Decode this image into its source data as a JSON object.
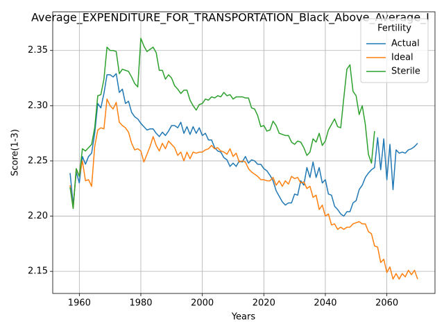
{
  "chart_data": {
    "type": "line",
    "title": "Average_EXPENDITURE_FOR_TRANSPORTATION_Black_Above_Average_I",
    "xlabel": "Years",
    "ylabel": "Score(1-3)",
    "legend_title": "Fertility",
    "legend": "upper right",
    "grid": true,
    "x": [
      1957,
      1958,
      1959,
      1960,
      1961,
      1962,
      1963,
      1964,
      1965,
      1966,
      1967,
      1968,
      1969,
      1970,
      1971,
      1972,
      1973,
      1974,
      1975,
      1976,
      1977,
      1978,
      1979,
      1980,
      1981,
      1982,
      1983,
      1984,
      1985,
      1986,
      1987,
      1988,
      1989,
      1990,
      1991,
      1992,
      1993,
      1994,
      1995,
      1996,
      1997,
      1998,
      1999,
      2000,
      2001,
      2002,
      2003,
      2004,
      2005,
      2006,
      2007,
      2008,
      2009,
      2010,
      2011,
      2012,
      2013,
      2014,
      2015,
      2016,
      2017,
      2018,
      2019,
      2020,
      2021,
      2022,
      2023,
      2024,
      2025,
      2026,
      2027,
      2028,
      2029,
      2030,
      2031,
      2032,
      2033,
      2034,
      2035,
      2036,
      2037,
      2038,
      2039,
      2040,
      2041,
      2042,
      2043,
      2044,
      2045,
      2046,
      2047,
      2048,
      2049,
      2050,
      2051,
      2052,
      2053,
      2054,
      2055,
      2056,
      2057,
      2058,
      2059,
      2060,
      2061,
      2062,
      2063,
      2064,
      2065,
      2066,
      2067,
      2068,
      2069,
      2070
    ],
    "series": [
      {
        "name": "Actual",
        "color": "#1f77b4",
        "values": [
          2.239,
          2.21,
          2.24,
          2.23,
          2.254,
          2.247,
          2.254,
          2.257,
          2.275,
          2.302,
          2.298,
          2.311,
          2.328,
          2.328,
          2.326,
          2.329,
          2.312,
          2.315,
          2.302,
          2.304,
          2.294,
          2.29,
          2.288,
          2.284,
          2.281,
          2.278,
          2.279,
          2.279,
          2.275,
          2.272,
          2.276,
          2.273,
          2.277,
          2.282,
          2.282,
          2.28,
          2.285,
          2.275,
          2.281,
          2.274,
          2.281,
          2.275,
          2.28,
          2.273,
          2.275,
          2.269,
          2.269,
          2.262,
          2.259,
          2.258,
          2.253,
          2.251,
          2.245,
          2.248,
          2.245,
          2.25,
          2.249,
          2.254,
          2.248,
          2.251,
          2.25,
          2.247,
          2.247,
          2.243,
          2.241,
          2.237,
          2.232,
          2.223,
          2.218,
          2.213,
          2.21,
          2.212,
          2.212,
          2.22,
          2.219,
          2.232,
          2.228,
          2.244,
          2.235,
          2.249,
          2.235,
          2.244,
          2.23,
          2.233,
          2.22,
          2.219,
          2.209,
          2.206,
          2.202,
          2.2,
          2.204,
          2.204,
          2.212,
          2.214,
          2.224,
          2.228,
          2.235,
          2.239,
          2.242,
          2.244,
          2.271,
          2.242,
          2.27,
          2.233,
          2.265,
          2.224,
          2.26,
          2.257,
          2.258,
          2.257,
          2.26,
          2.261,
          2.263,
          2.266
        ]
      },
      {
        "name": "Ideal",
        "color": "#ff7f0e",
        "values": [
          2.228,
          2.207,
          2.243,
          2.236,
          2.25,
          2.232,
          2.233,
          2.227,
          2.263,
          2.278,
          2.28,
          2.279,
          2.306,
          2.3,
          2.297,
          2.303,
          2.285,
          2.282,
          2.28,
          2.276,
          2.266,
          2.26,
          2.261,
          2.259,
          2.249,
          2.256,
          2.263,
          2.272,
          2.264,
          2.259,
          2.266,
          2.261,
          2.268,
          2.265,
          2.262,
          2.255,
          2.258,
          2.25,
          2.258,
          2.252,
          2.258,
          2.257,
          2.258,
          2.258,
          2.26,
          2.261,
          2.264,
          2.261,
          2.262,
          2.259,
          2.258,
          2.256,
          2.261,
          2.254,
          2.257,
          2.249,
          2.25,
          2.249,
          2.243,
          2.24,
          2.238,
          2.236,
          2.233,
          2.233,
          2.232,
          2.232,
          2.235,
          2.228,
          2.232,
          2.227,
          2.232,
          2.229,
          2.236,
          2.234,
          2.235,
          2.23,
          2.231,
          2.225,
          2.227,
          2.217,
          2.219,
          2.206,
          2.21,
          2.2,
          2.202,
          2.192,
          2.193,
          2.188,
          2.19,
          2.188,
          2.19,
          2.19,
          2.193,
          2.194,
          2.195,
          2.193,
          2.193,
          2.186,
          2.184,
          2.173,
          2.172,
          2.158,
          2.161,
          2.149,
          2.154,
          2.143,
          2.148,
          2.143,
          2.148,
          2.145,
          2.151,
          2.147,
          2.151,
          2.143
        ]
      },
      {
        "name": "Sterile",
        "color": "#2ca02c",
        "values": [
          2.226,
          2.207,
          2.243,
          2.236,
          2.261,
          2.259,
          2.262,
          2.265,
          2.28,
          2.309,
          2.31,
          2.324,
          2.353,
          2.35,
          2.35,
          2.349,
          2.329,
          2.333,
          2.332,
          2.331,
          2.326,
          2.32,
          2.317,
          2.361,
          2.354,
          2.349,
          2.351,
          2.353,
          2.348,
          2.332,
          2.332,
          2.324,
          2.328,
          2.325,
          2.318,
          2.315,
          2.311,
          2.314,
          2.314,
          2.305,
          2.3,
          2.296,
          2.301,
          2.302,
          2.306,
          2.305,
          2.308,
          2.307,
          2.309,
          2.308,
          2.312,
          2.309,
          2.31,
          2.306,
          2.308,
          2.308,
          2.308,
          2.307,
          2.307,
          2.298,
          2.297,
          2.291,
          2.281,
          2.282,
          2.277,
          2.278,
          2.286,
          2.282,
          2.275,
          2.274,
          2.273,
          2.273,
          2.267,
          2.265,
          2.268,
          2.267,
          2.262,
          2.255,
          2.258,
          2.27,
          2.267,
          2.275,
          2.264,
          2.268,
          2.278,
          2.283,
          2.288,
          2.281,
          2.28,
          2.307,
          2.333,
          2.337,
          2.313,
          2.309,
          2.292,
          2.3,
          2.283,
          2.256,
          2.248,
          2.277,
          null,
          null,
          null,
          null,
          null,
          null,
          null,
          null,
          null,
          null,
          null,
          null,
          null,
          null
        ]
      }
    ],
    "xlim": [
      1951.35,
      2075.65
    ],
    "ylim": [
      2.13,
      2.385
    ],
    "xticks": [
      1960,
      1980,
      2000,
      2020,
      2040,
      2060
    ],
    "yticks": [
      2.15,
      {
        "value": 2.2,
        "label": "2.20"
      },
      2.25,
      {
        "value": 2.3,
        "label": "2.30"
      },
      2.35
    ]
  }
}
